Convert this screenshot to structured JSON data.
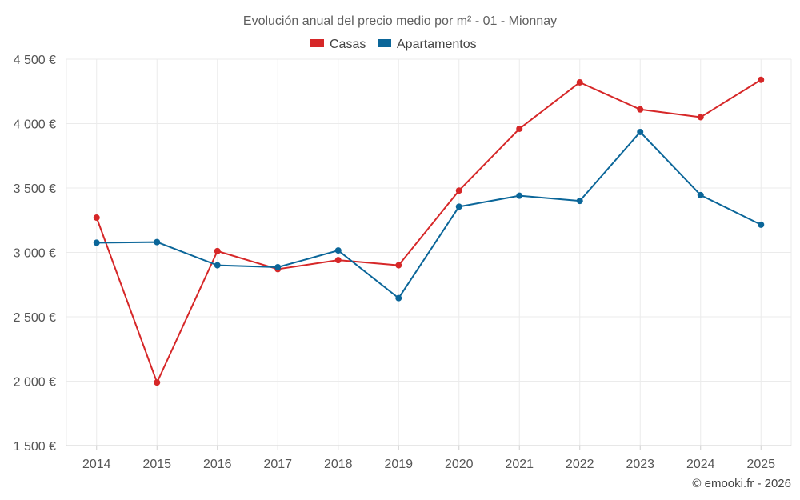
{
  "chart_data": {
    "type": "line",
    "title": "Evolución anual del precio medio por m² - 01 - Mionnay",
    "x": [
      "2014",
      "2015",
      "2016",
      "2017",
      "2018",
      "2019",
      "2020",
      "2021",
      "2022",
      "2023",
      "2024",
      "2025"
    ],
    "ylim": [
      1500,
      4500
    ],
    "yticks": [
      1500,
      2000,
      2500,
      3000,
      3500,
      4000,
      4500
    ],
    "ytick_labels": [
      "1 500 €",
      "2 000 €",
      "2 500 €",
      "3 000 €",
      "3 500 €",
      "4 000 €",
      "4 500 €"
    ],
    "xlabel": "",
    "ylabel": "",
    "grid": true,
    "legend_position": "top-center",
    "series": [
      {
        "name": "Casas",
        "color": "#d62728",
        "values": [
          3270,
          1990,
          3010,
          2870,
          2940,
          2900,
          3480,
          3960,
          4320,
          4110,
          4050,
          4340
        ]
      },
      {
        "name": "Apartamentos",
        "color": "#0b6699",
        "values": [
          3075,
          3080,
          2900,
          2885,
          3015,
          2645,
          3355,
          3440,
          3400,
          3935,
          3445,
          3215
        ]
      }
    ],
    "credit": "© emooki.fr - 2026"
  }
}
